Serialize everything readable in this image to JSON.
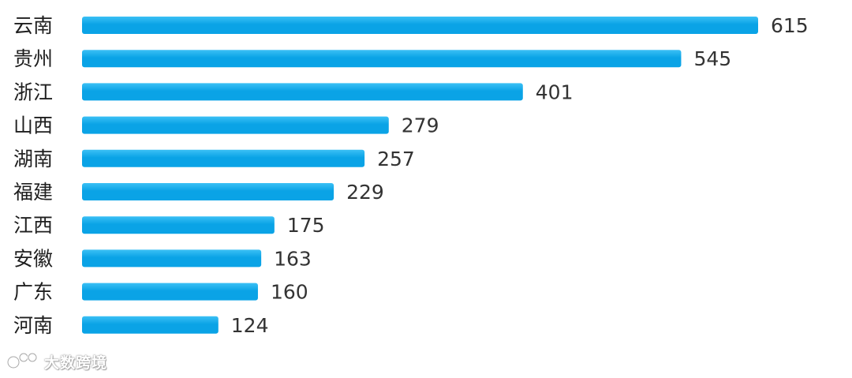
{
  "chart_data": {
    "type": "bar",
    "orientation": "horizontal",
    "categories": [
      "云南",
      "贵州",
      "浙江",
      "山西",
      "湖南",
      "福建",
      "江西",
      "安徽",
      "广东",
      "河南"
    ],
    "values": [
      615,
      545,
      401,
      279,
      257,
      229,
      175,
      163,
      160,
      124
    ],
    "title": "",
    "xlabel": "",
    "ylabel": "",
    "xlim": [
      0,
      615
    ],
    "grid": false,
    "legend": "none",
    "data_labels": true,
    "bar_color": "#0AA3E6",
    "bar_color_light": "#3CC0F5"
  },
  "watermark": {
    "text": "大数跨境",
    "icon": "watermark-logo-icon"
  }
}
